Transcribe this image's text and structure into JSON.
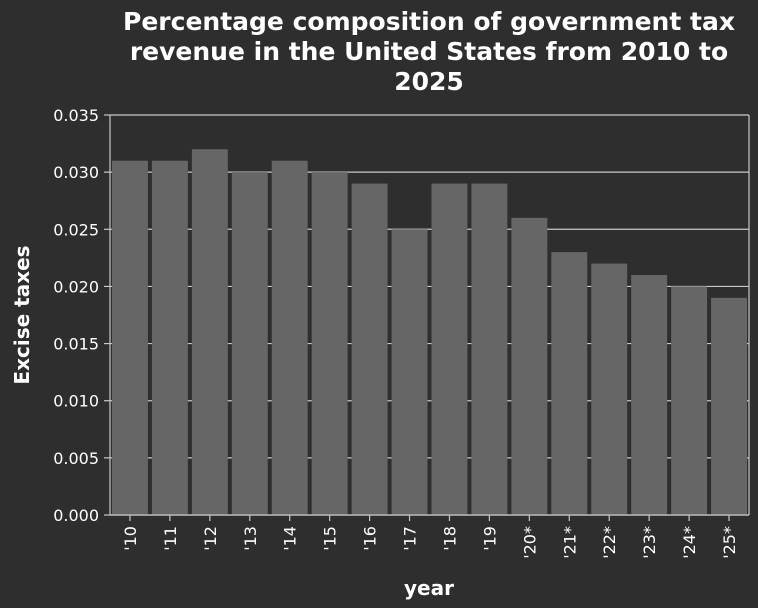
{
  "chart_data": {
    "type": "bar",
    "title": "Percentage composition of government tax revenue in the United States from 2010 to 2025",
    "title_lines": [
      "Percentage composition of government tax",
      "revenue in the United States from 2010 to",
      "2025"
    ],
    "xlabel": "year",
    "ylabel": "Excise taxes",
    "categories": [
      "'10",
      "'11",
      "'12",
      "'13",
      "'14",
      "'15",
      "'16",
      "'17",
      "'18",
      "'19",
      "'20*",
      "'21*",
      "'22*",
      "'23*",
      "'24*",
      "'25*"
    ],
    "values": [
      0.031,
      0.031,
      0.032,
      0.03,
      0.031,
      0.03,
      0.029,
      0.025,
      0.029,
      0.029,
      0.026,
      0.023,
      0.022,
      0.021,
      0.02,
      0.019
    ],
    "ylim": [
      0,
      0.035
    ],
    "yticks": [
      "0.000",
      "0.005",
      "0.010",
      "0.015",
      "0.020",
      "0.025",
      "0.030",
      "0.035"
    ],
    "grid": true,
    "legend": "none",
    "colors": {
      "background": "#2e2e2e",
      "bar": "#666666",
      "grid": "#c8c8c8",
      "text": "#ffffff"
    }
  }
}
